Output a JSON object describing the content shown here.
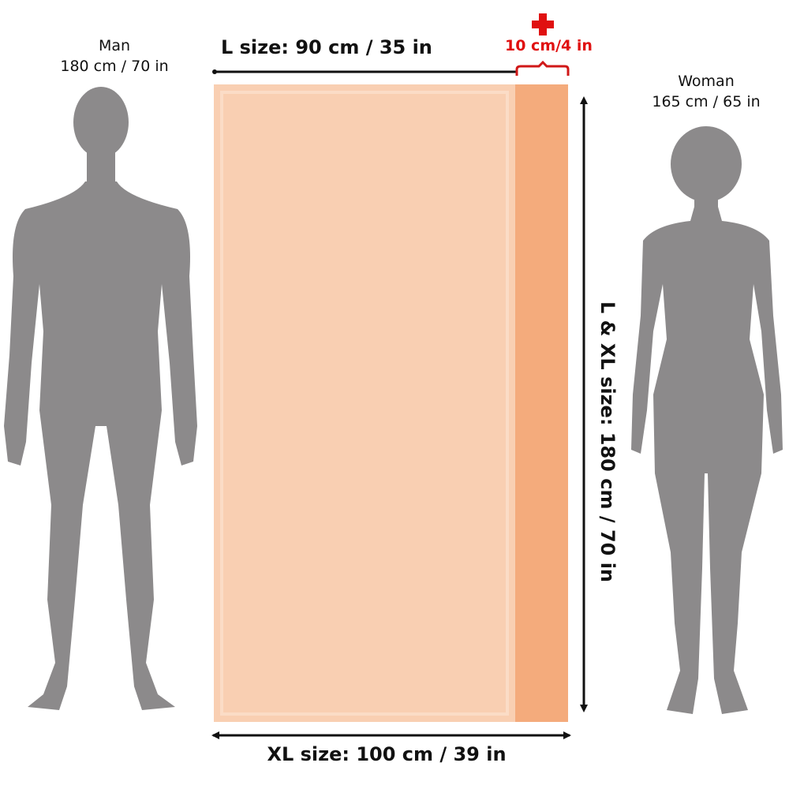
{
  "figures": {
    "man": {
      "label": "Man",
      "height": "180 cm / 70 in"
    },
    "woman": {
      "label": "Woman",
      "height": "165 cm / 65 in"
    }
  },
  "dimensions": {
    "l_width": "L size: 90 cm / 35 in",
    "extra": "10 cm/4 in",
    "length": "L & XL size: 180 cm / 70 in",
    "xl_width": "XL size: 100 cm / 39 in"
  },
  "colors": {
    "silhouette": "#8c8a8b",
    "towel_l": "#f9cfb2",
    "towel_extra": "#f4ab7c",
    "accent_red": "#e01010"
  }
}
